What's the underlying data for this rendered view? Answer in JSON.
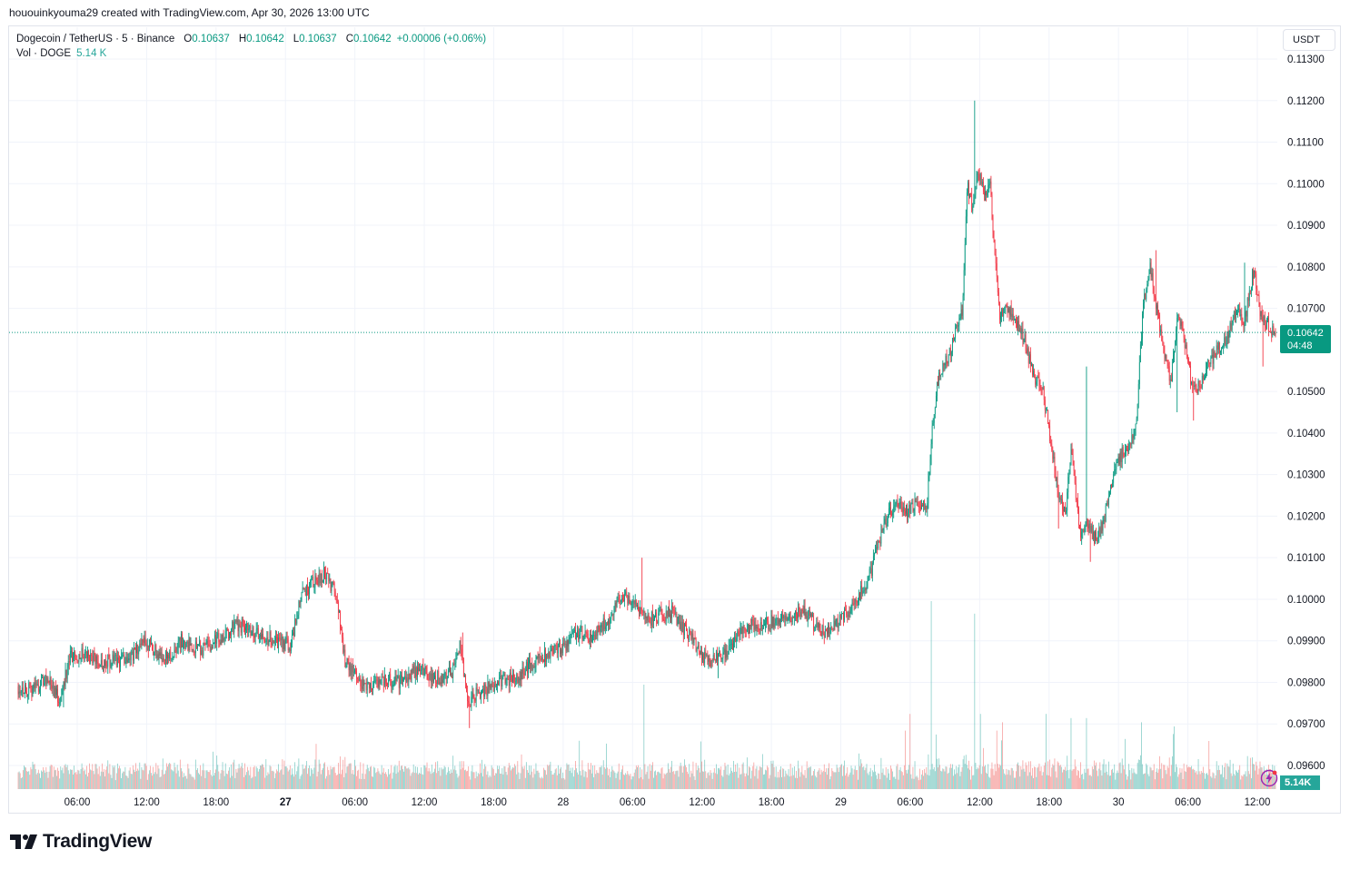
{
  "header": {
    "caption": "hououinkyouma29 created with TradingView.com, Apr 30, 2026 13:00 UTC"
  },
  "legend": {
    "symbol": "Dogecoin / TetherUS · 5 · Binance",
    "open_key": "O",
    "open": "0.10637",
    "high_key": "H",
    "high": "0.10642",
    "low_key": "L",
    "low": "0.10637",
    "close_key": "C",
    "close": "0.10642",
    "change": "+0.00006 (+0.06%)",
    "vol_label": "Vol · DOGE",
    "vol_value": "5.14 K"
  },
  "toolbar": {
    "currency": "USDT"
  },
  "price_tag": {
    "price": "0.10642",
    "countdown": "04:48"
  },
  "volume_tag": {
    "value": "5.14K"
  },
  "branding": {
    "logo_text": "TradingView"
  },
  "colors": {
    "up": "#089981",
    "down": "#f23645",
    "vol_up": "#26a69a",
    "vol_down": "#ef5350",
    "grid": "#f0f3fa",
    "axis_text": "#131722"
  },
  "chart_data": {
    "type": "candlestick",
    "title": "Dogecoin / TetherUS · 5 · Binance",
    "interval": "5",
    "y_axis": {
      "ticks": [
        "0.11300",
        "0.11200",
        "0.11100",
        "0.11000",
        "0.10900",
        "0.10800",
        "0.10700",
        "0.10500",
        "0.10400",
        "0.10300",
        "0.10200",
        "0.10100",
        "0.10000",
        "0.09900",
        "0.09800",
        "0.09700",
        "0.09600"
      ],
      "ylim": [
        0.0955,
        0.1136
      ]
    },
    "x_axis": {
      "ticks": [
        {
          "label": "06:00",
          "hours": 6
        },
        {
          "label": "12:00",
          "hours": 12
        },
        {
          "label": "18:00",
          "hours": 18
        },
        {
          "label": "27",
          "hours": 24,
          "bold": true
        },
        {
          "label": "06:00",
          "hours": 30
        },
        {
          "label": "12:00",
          "hours": 36
        },
        {
          "label": "18:00",
          "hours": 42
        },
        {
          "label": "28",
          "hours": 48
        },
        {
          "label": "06:00",
          "hours": 54
        },
        {
          "label": "12:00",
          "hours": 60
        },
        {
          "label": "18:00",
          "hours": 66
        },
        {
          "label": "29",
          "hours": 72
        },
        {
          "label": "06:00",
          "hours": 78
        },
        {
          "label": "12:00",
          "hours": 84
        },
        {
          "label": "18:00",
          "hours": 90
        },
        {
          "label": "30",
          "hours": 96
        },
        {
          "label": "06:00",
          "hours": 102
        },
        {
          "label": "12:00",
          "hours": 108
        }
      ],
      "range_hours": [
        0.9,
        109.6
      ]
    },
    "last_price": 0.10642,
    "price_keypoints": [
      [
        0.9,
        0.0979
      ],
      [
        2,
        0.0978
      ],
      [
        3.5,
        0.0981
      ],
      [
        4.5,
        0.0976
      ],
      [
        5.5,
        0.0986
      ],
      [
        6.5,
        0.0987
      ],
      [
        8,
        0.0985
      ],
      [
        9.5,
        0.0985
      ],
      [
        11,
        0.0987
      ],
      [
        12,
        0.099
      ],
      [
        13,
        0.0987
      ],
      [
        14,
        0.0986
      ],
      [
        15,
        0.099
      ],
      [
        17,
        0.0988
      ],
      [
        18.5,
        0.0991
      ],
      [
        20,
        0.0994
      ],
      [
        21.5,
        0.0992
      ],
      [
        23,
        0.099
      ],
      [
        24.5,
        0.0989
      ],
      [
        25.5,
        0.1001
      ],
      [
        26.5,
        0.1004
      ],
      [
        27.5,
        0.1006
      ],
      [
        28.5,
        0.1001
      ],
      [
        29.2,
        0.0985
      ],
      [
        30,
        0.0982
      ],
      [
        31,
        0.0979
      ],
      [
        32.5,
        0.0981
      ],
      [
        34,
        0.098
      ],
      [
        35.5,
        0.0983
      ],
      [
        37,
        0.0981
      ],
      [
        38.5,
        0.0982
      ],
      [
        39.2,
        0.099
      ],
      [
        39.8,
        0.0975
      ],
      [
        40.5,
        0.0977
      ],
      [
        42.5,
        0.098
      ],
      [
        44,
        0.0981
      ],
      [
        46,
        0.0986
      ],
      [
        48,
        0.0988
      ],
      [
        49.5,
        0.0992
      ],
      [
        50.5,
        0.0991
      ],
      [
        52,
        0.0995
      ],
      [
        53,
        0.1001
      ],
      [
        54,
        0.1
      ],
      [
        55.5,
        0.0995
      ],
      [
        57.5,
        0.0997
      ],
      [
        59,
        0.0991
      ],
      [
        60.5,
        0.0985
      ],
      [
        61.5,
        0.0986
      ],
      [
        62.5,
        0.0988
      ],
      [
        63.5,
        0.0993
      ],
      [
        65,
        0.0994
      ],
      [
        67,
        0.0995
      ],
      [
        69,
        0.0997
      ],
      [
        70,
        0.0993
      ],
      [
        71,
        0.0992
      ],
      [
        72.5,
        0.0997
      ],
      [
        73.5,
        0.1
      ],
      [
        74.5,
        0.1005
      ],
      [
        75,
        0.101
      ],
      [
        76,
        0.1019
      ],
      [
        76.8,
        0.1023
      ],
      [
        77.6,
        0.1021
      ],
      [
        78.5,
        0.1023
      ],
      [
        79.5,
        0.1022
      ],
      [
        80,
        0.1042
      ],
      [
        80.6,
        0.1055
      ],
      [
        81.4,
        0.1058
      ],
      [
        82,
        0.1064
      ],
      [
        82.6,
        0.107
      ],
      [
        83,
        0.11
      ],
      [
        83.4,
        0.1095
      ],
      [
        84,
        0.1102
      ],
      [
        84.6,
        0.1098
      ],
      [
        85,
        0.11
      ],
      [
        85.4,
        0.1082
      ],
      [
        85.8,
        0.1068
      ],
      [
        86.5,
        0.107
      ],
      [
        87.3,
        0.1066
      ],
      [
        88,
        0.1062
      ],
      [
        88.7,
        0.1054
      ],
      [
        89.5,
        0.1051
      ],
      [
        90.3,
        0.1037
      ],
      [
        90.9,
        0.1024
      ],
      [
        91.5,
        0.1021
      ],
      [
        92,
        0.1036
      ],
      [
        92.7,
        0.1016
      ],
      [
        93.4,
        0.1018
      ],
      [
        94.2,
        0.1014
      ],
      [
        94.9,
        0.102
      ],
      [
        95.7,
        0.103
      ],
      [
        96.4,
        0.1035
      ],
      [
        97,
        0.1037
      ],
      [
        97.6,
        0.1042
      ],
      [
        98.2,
        0.107
      ],
      [
        98.8,
        0.108
      ],
      [
        99.4,
        0.107
      ],
      [
        100,
        0.106
      ],
      [
        100.6,
        0.1052
      ],
      [
        101.2,
        0.1068
      ],
      [
        101.8,
        0.1062
      ],
      [
        102.4,
        0.1052
      ],
      [
        103,
        0.1051
      ],
      [
        103.8,
        0.1056
      ],
      [
        104.6,
        0.106
      ],
      [
        105.4,
        0.1063
      ],
      [
        106.2,
        0.1069
      ],
      [
        107,
        0.1067
      ],
      [
        107.8,
        0.108
      ],
      [
        108.4,
        0.1068
      ],
      [
        109,
        0.1066
      ],
      [
        109.6,
        0.10642
      ]
    ],
    "high_spikes": [
      [
        83.6,
        0.112
      ],
      [
        54.8,
        0.101
      ],
      [
        93.2,
        0.1056
      ],
      [
        99.2,
        0.1084
      ],
      [
        106.9,
        0.1081
      ],
      [
        39.3,
        0.0992
      ],
      [
        27.5,
        0.1008
      ]
    ],
    "low_spikes": [
      [
        4.8,
        0.0974
      ],
      [
        39.9,
        0.0969
      ],
      [
        93.6,
        0.1009
      ],
      [
        101.1,
        0.1045
      ],
      [
        102.5,
        0.1043
      ],
      [
        108.5,
        0.1056
      ],
      [
        90.8,
        0.1017
      ],
      [
        61.4,
        0.0981
      ]
    ],
    "volume_spikes": [
      [
        79.8,
        0.45
      ],
      [
        83.6,
        0.42
      ],
      [
        84.1,
        0.18
      ],
      [
        89.7,
        0.18
      ],
      [
        91.9,
        0.17
      ],
      [
        86.0,
        0.16
      ],
      [
        93.2,
        0.17
      ],
      [
        55,
        0.25
      ],
      [
        41,
        0.07
      ],
      [
        78.0,
        0.18
      ],
      [
        77.6,
        0.14
      ],
      [
        96.6,
        0.12
      ],
      [
        98.0,
        0.16
      ],
      [
        100.8,
        0.15
      ],
      [
        85.5,
        0.14
      ],
      [
        30.0,
        0.07
      ],
      [
        38.5,
        0.08
      ],
      [
        22.0,
        0.06
      ],
      [
        15.0,
        0.05
      ]
    ],
    "volume_scale_note": "relative 0-1"
  }
}
